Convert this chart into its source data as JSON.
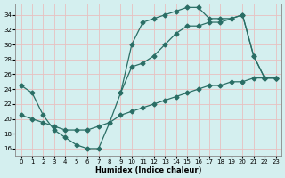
{
  "xlabel": "Humidex (Indice chaleur)",
  "xlim": [
    -0.5,
    23.5
  ],
  "ylim": [
    15.0,
    35.5
  ],
  "yticks": [
    16,
    18,
    20,
    22,
    24,
    26,
    28,
    30,
    32,
    34
  ],
  "xticks": [
    0,
    1,
    2,
    3,
    4,
    5,
    6,
    7,
    8,
    9,
    10,
    11,
    12,
    13,
    14,
    15,
    16,
    17,
    18,
    19,
    20,
    21,
    22,
    23
  ],
  "line_color": "#2a6e65",
  "bg_color": "#d4efef",
  "grid_color": "#e8c0c0",
  "line1_x": [
    0,
    1,
    2,
    3,
    4,
    5,
    6,
    7,
    8,
    9,
    10,
    11,
    12,
    13,
    14,
    15,
    16,
    17,
    18,
    19,
    20,
    21,
    22,
    23
  ],
  "line1_y": [
    24.5,
    23.5,
    20.5,
    18.5,
    17.5,
    16.5,
    16.0,
    16.0,
    19.5,
    23.5,
    30.0,
    33.0,
    33.5,
    34.0,
    34.5,
    35.0,
    35.0,
    33.5,
    33.5,
    33.5,
    34.0,
    28.5,
    25.5,
    25.5
  ],
  "line2_x": [
    9,
    10,
    11,
    12,
    13,
    14,
    15,
    16,
    17,
    18,
    19,
    20,
    21,
    22,
    23
  ],
  "line2_y": [
    23.5,
    27.0,
    27.5,
    28.5,
    30.0,
    31.5,
    32.5,
    32.5,
    33.0,
    33.0,
    33.5,
    34.0,
    28.5,
    25.5,
    25.5
  ],
  "line3_x": [
    0,
    1,
    2,
    3,
    4,
    5,
    6,
    7,
    8,
    9,
    10,
    11,
    12,
    13,
    14,
    15,
    16,
    17,
    18,
    19,
    20,
    21,
    22,
    23
  ],
  "line3_y": [
    20.5,
    20.0,
    19.5,
    19.0,
    18.5,
    18.5,
    18.5,
    19.0,
    19.5,
    20.5,
    21.0,
    21.5,
    22.0,
    22.5,
    23.0,
    23.5,
    24.0,
    24.5,
    24.5,
    25.0,
    25.0,
    25.5,
    25.5,
    25.5
  ]
}
